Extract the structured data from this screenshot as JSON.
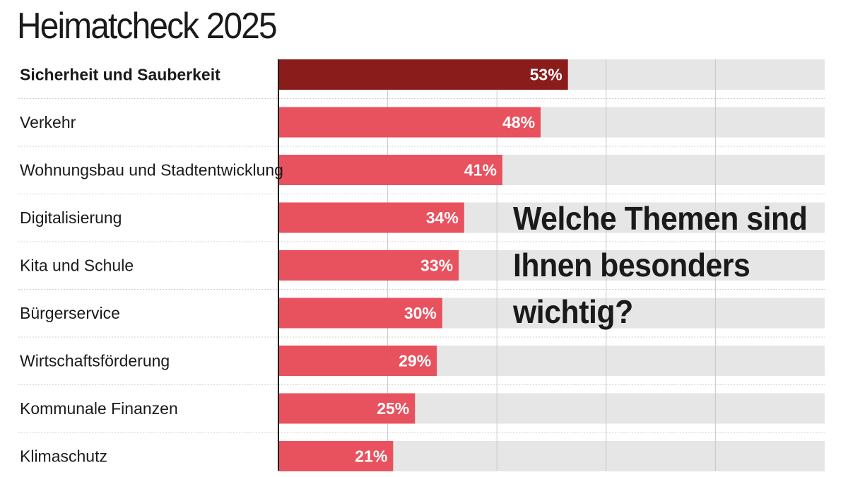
{
  "header": {
    "title": "Heimatcheck 2025"
  },
  "question": "Welche Themen sind Ihnen besonders wichtig?",
  "colors": {
    "highlight_bar": "#8b1c1c",
    "bar": "#e8525e",
    "track": "#e6e6e6",
    "text": "#1a1a1a"
  },
  "chart_data": {
    "type": "bar",
    "orientation": "horizontal",
    "title": "Heimatcheck 2025",
    "xlabel": "",
    "ylabel": "",
    "xlim": [
      0,
      100
    ],
    "grid": true,
    "highlighted_category": "Sicherheit und Sauberkeit",
    "categories": [
      "Sicherheit und Sauberkeit",
      "Verkehr",
      "Wohnungsbau und Stadtentwicklung",
      "Digitalisierung",
      "Kita und Schule",
      "Bürgerservice",
      "Wirtschaftsförderung",
      "Kommunale Finanzen",
      "Klimaschutz"
    ],
    "values": [
      53,
      48,
      41,
      34,
      33,
      30,
      29,
      25,
      21
    ],
    "value_labels": [
      "53%",
      "48%",
      "41%",
      "34%",
      "33%",
      "30%",
      "29%",
      "25%",
      "21%"
    ]
  }
}
